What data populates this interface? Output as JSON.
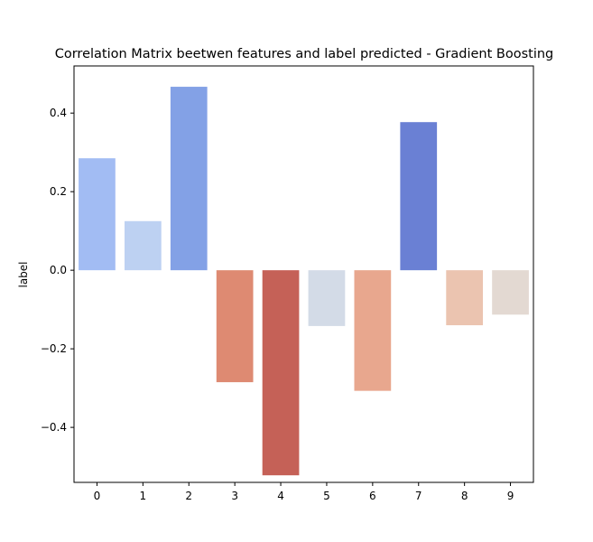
{
  "chart_data": {
    "type": "bar",
    "title": "Correlation Matrix beetwen features and label predicted - Gradient Boosting",
    "xlabel": "",
    "ylabel": "label",
    "categories": [
      "0",
      "1",
      "2",
      "3",
      "4",
      "5",
      "6",
      "7",
      "8",
      "9"
    ],
    "values": [
      0.285,
      0.125,
      0.467,
      -0.285,
      -0.522,
      -0.142,
      -0.307,
      0.377,
      -0.14,
      -0.113
    ],
    "bar_colors": [
      "#a2bcf3",
      "#bdd1f2",
      "#83a1e6",
      "#de8a72",
      "#c56157",
      "#d3dbe7",
      "#e8a78e",
      "#6a80d4",
      "#ebc4b0",
      "#e3d9d2"
    ],
    "ylim": [
      -0.54,
      0.52
    ],
    "yticks": [
      -0.4,
      -0.2,
      0.0,
      0.2,
      0.4
    ],
    "ytick_labels": [
      "−0.4",
      "−0.2",
      "0.0",
      "0.2",
      "0.4"
    ],
    "grid": false,
    "legend": "none"
  }
}
